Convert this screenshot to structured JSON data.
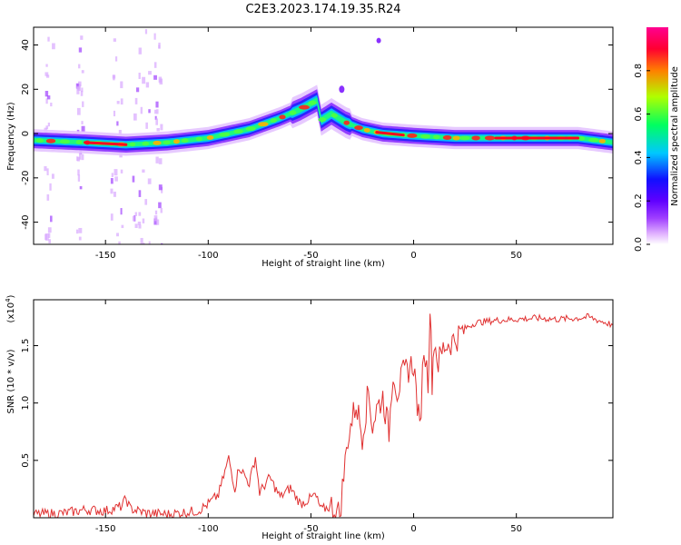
{
  "title": "C2E3.2023.174.19.35.R24",
  "chart_data": [
    {
      "type": "heatmap",
      "title": "C2E3.2023.174.19.35.R24",
      "xlabel": "Height of straight line (km)",
      "ylabel": "Frequency (Hz)",
      "xlim": [
        -185,
        97
      ],
      "ylim": [
        -50,
        48
      ],
      "xticks": [
        -150,
        -100,
        -50,
        0,
        50
      ],
      "yticks": [
        -40,
        -20,
        0,
        20,
        40
      ],
      "colorbar": {
        "label": "Normalized spectral amplitude",
        "range": [
          0.0,
          1.0
        ],
        "ticks": [
          "0.0",
          "0.2",
          "0.4",
          "0.6",
          "0.8"
        ],
        "colors": [
          "#ffffff",
          "#c060ff",
          "#7000ff",
          "#1010ff",
          "#00c8ff",
          "#00ff60",
          "#b0ff00",
          "#ff8000",
          "#ff0030",
          "#ff0090"
        ]
      },
      "ridge": [
        [
          -185,
          -3
        ],
        [
          -160,
          -4
        ],
        [
          -140,
          -5
        ],
        [
          -120,
          -4
        ],
        [
          -100,
          -2
        ],
        [
          -80,
          2
        ],
        [
          -65,
          7
        ],
        [
          -55,
          11
        ],
        [
          -47,
          15
        ],
        [
          -45,
          6
        ],
        [
          -40,
          9
        ],
        [
          -33,
          5
        ],
        [
          -25,
          2
        ],
        [
          -15,
          0
        ],
        [
          0,
          -1
        ],
        [
          20,
          -2
        ],
        [
          50,
          -2
        ],
        [
          80,
          -2
        ],
        [
          97,
          -4
        ]
      ]
    },
    {
      "type": "line",
      "xlabel": "Height of straight line (km)",
      "ylabel": "SNR (10 * v/v)",
      "yscale_note": "(x10",
      "yscale_exp": "4",
      "xlim": [
        -185,
        97
      ],
      "ylim": [
        0,
        19000
      ],
      "xticks": [
        -150,
        -100,
        -50,
        0,
        50
      ],
      "yticks_labels": [
        "0.5",
        "1.0",
        "1.5"
      ],
      "yticks": [
        5000,
        10000,
        15000
      ],
      "series": [
        {
          "color": "#e03030",
          "x": [
            -185,
            -170,
            -160,
            -150,
            -142,
            -140,
            -138,
            -130,
            -120,
            -105,
            -100,
            -95,
            -90,
            -87,
            -85,
            -80,
            -77,
            -75,
            -70,
            -65,
            -60,
            -55,
            -50,
            -48,
            -45,
            -40,
            -36,
            -32,
            -30,
            -28,
            -25,
            -22,
            -20,
            -18,
            -15,
            -12,
            -10,
            -8,
            -5,
            0,
            3,
            5,
            7,
            8,
            9,
            10,
            12,
            15,
            20,
            25,
            30,
            40,
            50,
            60,
            70,
            80,
            85,
            90,
            97
          ],
          "values": [
            300,
            400,
            700,
            600,
            1000,
            1700,
            800,
            400,
            300,
            600,
            1200,
            2000,
            5200,
            2500,
            4500,
            3000,
            5300,
            2200,
            3500,
            1800,
            2600,
            1200,
            1700,
            2000,
            700,
            1000,
            300,
            7000,
            8500,
            10000,
            7200,
            11000,
            8000,
            9500,
            10500,
            7500,
            13000,
            11000,
            12500,
            13500,
            7500,
            15000,
            12000,
            18500,
            12000,
            15500,
            13500,
            15000,
            15500,
            16500,
            17000,
            17200,
            17300,
            17400,
            17300,
            17400,
            17500,
            17200,
            16800
          ]
        }
      ]
    }
  ]
}
